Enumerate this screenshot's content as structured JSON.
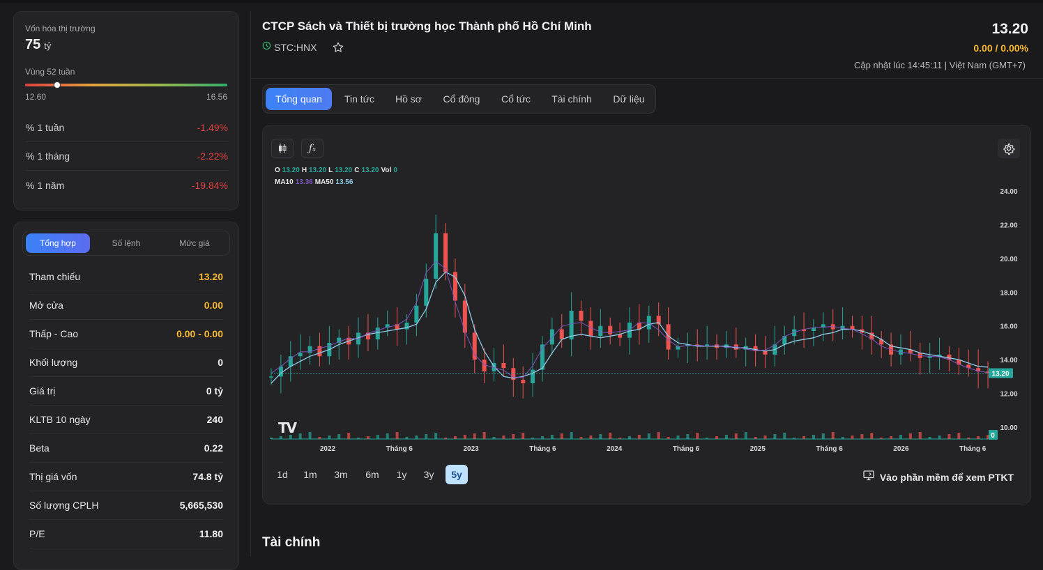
{
  "market_cap": {
    "label": "Vốn hóa thị trường",
    "value": "75",
    "unit": "tỷ"
  },
  "range52": {
    "label": "Vùng 52 tuần",
    "low": "12.60",
    "high": "16.56",
    "position": 0.16
  },
  "perf": [
    {
      "label": "% 1 tuần",
      "value": "-1.49%"
    },
    {
      "label": "% 1 tháng",
      "value": "-2.22%"
    },
    {
      "label": "% 1 năm",
      "value": "-19.84%"
    }
  ],
  "book_tabs": [
    "Tổng hợp",
    "Số lệnh",
    "Mức giá"
  ],
  "stats": [
    {
      "label": "Tham chiếu",
      "value": "13.20",
      "style": "yellow"
    },
    {
      "label": "Mở cửa",
      "value": "0.00",
      "style": "yellow"
    },
    {
      "label": "Thấp - Cao",
      "value": "0.00  -  0.00",
      "style": "yellow"
    },
    {
      "label": "Khối lượng",
      "value": "0",
      "style": "white"
    },
    {
      "label": "Giá trị",
      "value": "0 tỷ",
      "style": "white"
    },
    {
      "label": "KLTB 10 ngày",
      "value": "240",
      "style": "white"
    },
    {
      "label": "Beta",
      "value": "0.22",
      "style": "white"
    },
    {
      "label": "Thị giá vốn",
      "value": "74.8 tỷ",
      "style": "white"
    },
    {
      "label": "Số lượng CPLH",
      "value": "5,665,530",
      "style": "white"
    },
    {
      "label": "P/E",
      "value": "11.80",
      "style": "white"
    }
  ],
  "company": {
    "name": "CTCP Sách và Thiết bị trường học Thành phố Hồ Chí Minh",
    "ticker": "STC:HNX"
  },
  "quote": {
    "price": "13.20",
    "change": "0.00 / 0.00%",
    "updated": "Cập nhật lúc 14:45:11 | Việt Nam (GMT+7)"
  },
  "nav_tabs": [
    "Tổng quan",
    "Tin tức",
    "Hồ sơ",
    "Cổ đông",
    "Cổ tức",
    "Tài chính",
    "Dữ liệu"
  ],
  "ohlc": {
    "o": "13.20",
    "h": "13.20",
    "l": "13.20",
    "c": "13.20",
    "vol": "0",
    "ma10": "13.36",
    "ma50": "13.56"
  },
  "ohlc_labels": {
    "o": "O",
    "h": "H",
    "l": "L",
    "c": "C",
    "vol": "Vol",
    "ma10": "MA10",
    "ma50": "MA50"
  },
  "timeframes": [
    "1d",
    "1m",
    "3m",
    "6m",
    "1y",
    "3y",
    "5y"
  ],
  "active_timeframe": "5y",
  "pro_link": "Vào phần mềm để xem PTKT",
  "section_title": "Tài chính",
  "colors": {
    "up": "#26a69a",
    "down": "#ef5350",
    "accent": "#3b82f6",
    "ma10": "#7e57c2",
    "ma50": "#8ecae6"
  },
  "chart_data": {
    "type": "candlestick",
    "y_ticks": [
      "24.00",
      "22.00",
      "20.00",
      "18.00",
      "16.00",
      "14.00",
      "12.00",
      "10.00"
    ],
    "ylim": [
      9.5,
      25
    ],
    "x_ticks": [
      "2022",
      "Tháng 6",
      "2023",
      "Tháng 6",
      "2024",
      "Tháng 6",
      "2025",
      "Tháng 6",
      "2026",
      "Tháng 6"
    ],
    "last_price_label": "13.20",
    "last_volume_label": "0",
    "close_series": [
      13.0,
      13.6,
      14.2,
      14.4,
      14.8,
      14.2,
      15.0,
      15.3,
      14.9,
      15.6,
      15.2,
      15.9,
      16.1,
      15.8,
      16.2,
      17.2,
      18.8,
      21.5,
      19.2,
      17.5,
      15.6,
      14.0,
      13.3,
      13.8,
      13.5,
      12.8,
      12.6,
      13.4,
      14.9,
      15.8,
      15.2,
      16.9,
      16.3,
      15.4,
      16.0,
      15.5,
      15.3,
      16.2,
      15.8,
      16.6,
      16.1,
      14.6,
      14.8,
      14.9,
      14.8,
      14.9,
      14.7,
      14.9,
      14.6,
      14.8,
      14.5,
      14.3,
      14.9,
      15.4,
      15.8,
      15.7,
      15.9,
      16.1,
      15.8,
      16.0,
      15.8,
      15.6,
      15.2,
      14.9,
      14.3,
      14.6,
      14.4,
      14.1,
      14.2,
      14.3,
      14.0,
      13.7,
      13.5,
      13.3,
      13.2
    ],
    "ma50_series": [
      12.6,
      13.2,
      13.6,
      13.9,
      14.2,
      14.4,
      14.6,
      14.9,
      15.1,
      15.3,
      15.5,
      15.6,
      15.7,
      15.8,
      15.9,
      16.1,
      17.0,
      18.6,
      19.2,
      18.9,
      17.8,
      15.8,
      14.5,
      13.6,
      13.0,
      12.9,
      13.0,
      13.2,
      13.5,
      14.4,
      15.2,
      15.4,
      15.5,
      15.4,
      15.3,
      15.4,
      15.5,
      15.7,
      15.8,
      16.1,
      16.2,
      15.4,
      15.0,
      14.9,
      14.8,
      14.8,
      14.8,
      14.8,
      14.7,
      14.7,
      14.6,
      14.5,
      14.6,
      14.9,
      15.1,
      15.2,
      15.3,
      15.5,
      15.6,
      15.8,
      15.8,
      15.7,
      15.5,
      15.2,
      14.8,
      14.7,
      14.6,
      14.4,
      14.3,
      14.2,
      14.1,
      14.0,
      13.8,
      13.6,
      13.56
    ]
  }
}
